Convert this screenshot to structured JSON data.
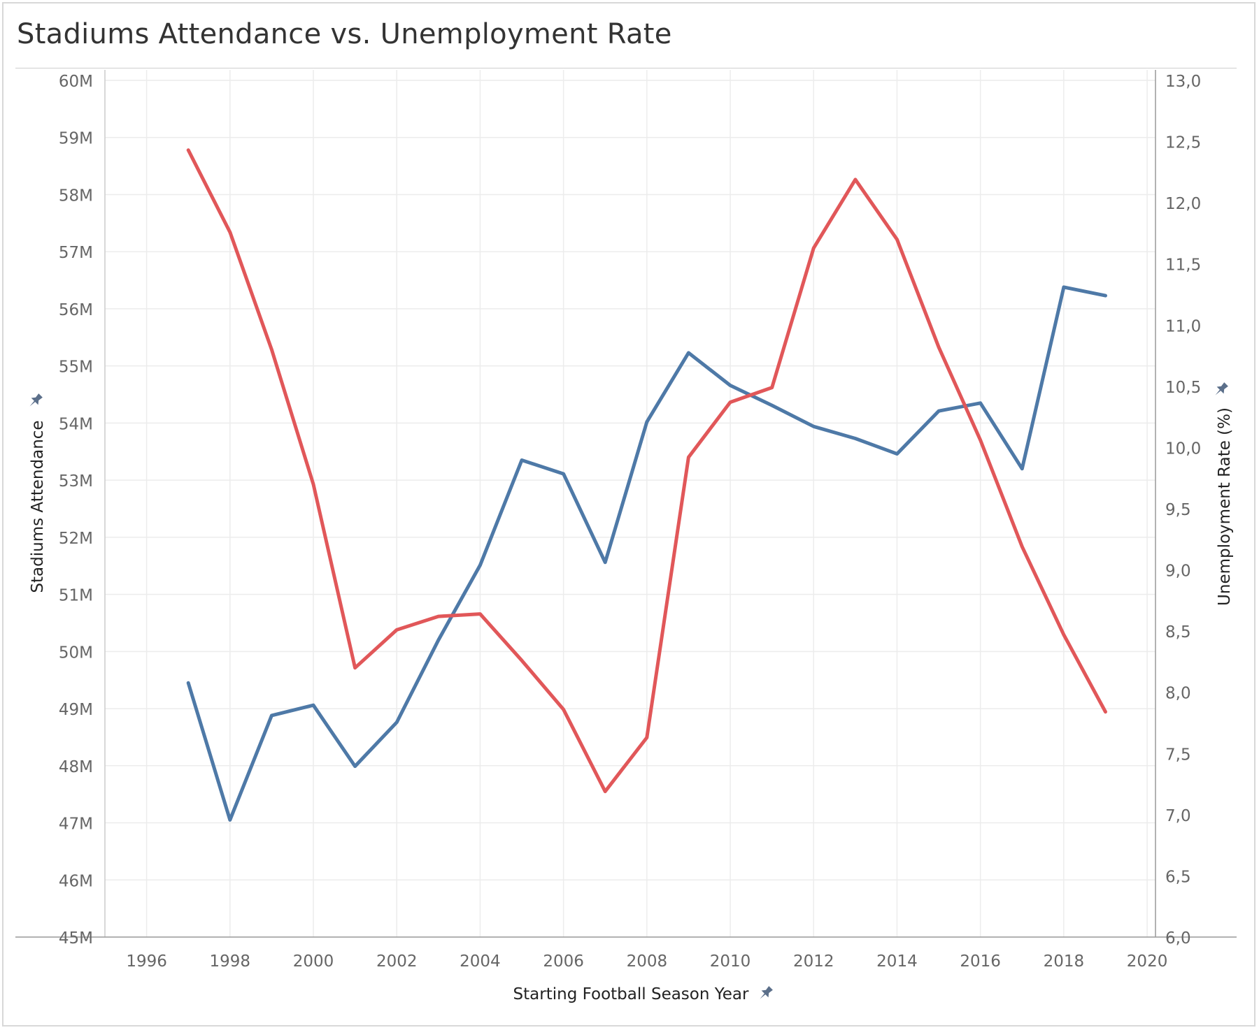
{
  "chart_data": {
    "type": "line",
    "title": "Stadiums Attendance vs. Unemployment Rate",
    "xlabel": "Starting Football Season Year",
    "ylabel_left": "Stadiums Attendance",
    "ylabel_right": "Unemployment Rate (%)",
    "xlim": [
      1995,
      2020.2
    ],
    "xticks": [
      1996,
      1998,
      2000,
      2002,
      2004,
      2006,
      2008,
      2010,
      2012,
      2014,
      2016,
      2018,
      2020
    ],
    "xtick_labels": [
      "1996",
      "1998",
      "2000",
      "2002",
      "2004",
      "2006",
      "2008",
      "2010",
      "2012",
      "2014",
      "2016",
      "2018",
      "2020"
    ],
    "ylim_left": [
      45000000,
      60000000
    ],
    "yticks_left": [
      45000000,
      46000000,
      47000000,
      48000000,
      49000000,
      50000000,
      51000000,
      52000000,
      53000000,
      54000000,
      55000000,
      56000000,
      57000000,
      58000000,
      59000000,
      60000000
    ],
    "ytick_labels_left": [
      "45M",
      "46M",
      "47M",
      "48M",
      "49M",
      "50M",
      "51M",
      "52M",
      "53M",
      "54M",
      "55M",
      "56M",
      "57M",
      "58M",
      "59M",
      "60M"
    ],
    "ylim_right": [
      6.0,
      13.0
    ],
    "yticks_right": [
      6.0,
      6.5,
      7.0,
      7.5,
      8.0,
      8.5,
      9.0,
      9.5,
      10.0,
      10.5,
      11.0,
      11.5,
      12.0,
      12.5,
      13.0
    ],
    "ytick_labels_right": [
      "6,0",
      "6,5",
      "7,0",
      "7,5",
      "8,0",
      "8,5",
      "9,0",
      "9,5",
      "10,0",
      "10,5",
      "11,0",
      "11,5",
      "12,0",
      "12,5",
      "13,0"
    ],
    "grid": true,
    "series": [
      {
        "axis": "left",
        "color": "#4e79a7",
        "x": [
          1997,
          1998,
          1999,
          2000,
          2001,
          2002,
          2003,
          2004,
          2005,
          2006,
          2007,
          2008,
          2009,
          2010,
          2011,
          2012,
          2013,
          2014,
          2015,
          2016,
          2017,
          2018,
          2019
        ],
        "values": [
          49450000,
          47050000,
          48880000,
          49060000,
          47990000,
          48760000,
          50200000,
          51510000,
          53350000,
          53110000,
          51560000,
          54020000,
          55230000,
          54660000,
          54310000,
          53940000,
          53730000,
          53460000,
          54210000,
          54350000,
          53200000,
          56380000,
          56230000
        ]
      },
      {
        "axis": "right",
        "color": "#e15759",
        "x": [
          1997,
          1998,
          1999,
          2000,
          2001,
          2002,
          2003,
          2004,
          2005,
          2006,
          2007,
          2008,
          2009,
          2010,
          2011,
          2012,
          2013,
          2014,
          2015,
          2016,
          2017,
          2018,
          2019
        ],
        "values": [
          12.43,
          11.76,
          10.8,
          9.7,
          8.2,
          8.51,
          8.62,
          8.64,
          8.26,
          7.86,
          7.19,
          7.63,
          9.92,
          10.37,
          10.49,
          11.63,
          12.19,
          11.7,
          10.82,
          10.06,
          9.19,
          8.47,
          7.84
        ]
      }
    ]
  }
}
